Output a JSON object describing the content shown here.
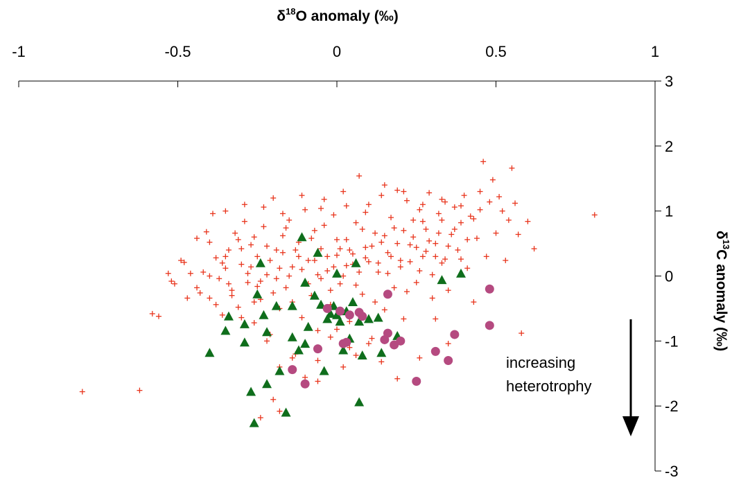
{
  "chart_data": {
    "type": "scatter",
    "title": "",
    "xlabel": {
      "pre": "δ",
      "sup": "18",
      "post": "O anomaly (‰)"
    },
    "ylabel": {
      "pre": "δ",
      "sup": "13",
      "post": "C anomaly (‰)"
    },
    "xlim": [
      -1,
      1
    ],
    "ylim": [
      -3,
      3
    ],
    "x_ticks": [
      "-1",
      "-0.5",
      "0",
      "0.5",
      "1"
    ],
    "y_ticks": [
      "3",
      "2",
      "1",
      "0",
      "-1",
      "-2",
      "-3"
    ],
    "x_axis_position": "top",
    "y_axis_position": "right",
    "grid": false,
    "legend": "none",
    "annotation": {
      "lines": [
        "increasing",
        "heterotrophy"
      ],
      "arrow": "down"
    },
    "series": [
      {
        "marker": "plus",
        "color": "#e8341c",
        "points": [
          [
            -0.8,
            -1.78
          ],
          [
            -0.62,
            -1.76
          ],
          [
            -0.58,
            -0.58
          ],
          [
            -0.56,
            -0.62
          ],
          [
            -0.52,
            -0.08
          ],
          [
            -0.51,
            -0.12
          ],
          [
            -0.49,
            0.24
          ],
          [
            -0.48,
            0.21
          ],
          [
            -0.46,
            0.04
          ],
          [
            -0.44,
            -0.18
          ],
          [
            -0.43,
            -0.26
          ],
          [
            -0.42,
            0.06
          ],
          [
            -0.41,
            0.68
          ],
          [
            -0.4,
            0.52
          ],
          [
            -0.4,
            -0.34
          ],
          [
            -0.38,
            0.28
          ],
          [
            -0.37,
            -0.04
          ],
          [
            -0.36,
            -0.6
          ],
          [
            -0.35,
            0.12
          ],
          [
            -0.34,
            0.4
          ],
          [
            -0.33,
            -0.22
          ],
          [
            -0.32,
            0.66
          ],
          [
            -0.31,
            -0.48
          ],
          [
            -0.3,
            0.18
          ],
          [
            -0.29,
            0.84
          ],
          [
            -0.28,
            -0.1
          ],
          [
            -0.27,
            0.48
          ],
          [
            -0.26,
            -0.72
          ],
          [
            -0.25,
            0.3
          ],
          [
            -0.24,
            -0.36
          ],
          [
            -0.23,
            0.76
          ],
          [
            -0.22,
            0.02
          ],
          [
            -0.21,
            -0.9
          ],
          [
            -0.2,
            1.2
          ],
          [
            -0.19,
            0.4
          ],
          [
            -0.18,
            -0.5
          ],
          [
            -0.17,
            0.62
          ],
          [
            -0.16,
            -0.18
          ],
          [
            -0.15,
            0.86
          ],
          [
            -0.14,
            0.14
          ],
          [
            -0.13,
            -1.2
          ],
          [
            -0.12,
            0.52
          ],
          [
            -0.11,
            -0.64
          ],
          [
            -0.1,
            1.02
          ],
          [
            -0.09,
            0.24
          ],
          [
            -0.08,
            -0.3
          ],
          [
            -0.07,
            0.7
          ],
          [
            -0.06,
            -0.84
          ],
          [
            -0.05,
            0.42
          ],
          [
            -0.04,
            1.18
          ],
          [
            -0.03,
            0.08
          ],
          [
            -0.02,
            -0.44
          ],
          [
            -0.01,
            0.94
          ],
          [
            0.0,
            0.32
          ],
          [
            0.01,
            -0.12
          ],
          [
            0.02,
            1.3
          ],
          [
            0.03,
            0.56
          ],
          [
            0.04,
            -0.7
          ],
          [
            0.05,
            0.18
          ],
          [
            0.06,
            0.82
          ],
          [
            0.07,
            1.54
          ],
          [
            0.08,
            -0.28
          ],
          [
            0.09,
            0.44
          ],
          [
            0.1,
            1.1
          ],
          [
            0.11,
            -0.96
          ],
          [
            0.12,
            0.66
          ],
          [
            0.13,
            0.06
          ],
          [
            0.14,
            1.24
          ],
          [
            0.15,
            -0.52
          ],
          [
            0.16,
            0.36
          ],
          [
            0.17,
            0.9
          ],
          [
            0.18,
            -0.18
          ],
          [
            0.19,
            1.32
          ],
          [
            0.2,
            0.14
          ],
          [
            0.21,
            -0.66
          ],
          [
            0.22,
            1.16
          ],
          [
            0.23,
            0.48
          ],
          [
            0.24,
            0.86
          ],
          [
            0.25,
            -0.1
          ],
          [
            0.26,
            1.02
          ],
          [
            0.27,
            0.3
          ],
          [
            0.28,
            0.72
          ],
          [
            0.29,
            1.28
          ],
          [
            0.3,
            -0.34
          ],
          [
            0.31,
            0.5
          ],
          [
            0.32,
            0.96
          ],
          [
            0.33,
            0.2
          ],
          [
            0.34,
            1.14
          ],
          [
            0.35,
            -0.22
          ],
          [
            0.36,
            0.64
          ],
          [
            0.37,
            1.06
          ],
          [
            0.38,
            0.4
          ],
          [
            0.39,
            0.82
          ],
          [
            0.4,
            1.24
          ],
          [
            0.41,
            0.12
          ],
          [
            0.42,
            0.92
          ],
          [
            0.43,
            -0.4
          ],
          [
            0.44,
            0.58
          ],
          [
            0.45,
            1.02
          ],
          [
            0.46,
            1.76
          ],
          [
            0.47,
            0.3
          ],
          [
            0.48,
            1.14
          ],
          [
            0.49,
            1.48
          ],
          [
            0.5,
            0.66
          ],
          [
            0.52,
            1.0
          ],
          [
            0.53,
            0.24
          ],
          [
            0.55,
            1.66
          ],
          [
            0.56,
            1.12
          ],
          [
            0.57,
            0.64
          ],
          [
            0.58,
            -0.88
          ],
          [
            0.6,
            0.84
          ],
          [
            0.62,
            0.42
          ],
          [
            0.81,
            0.94
          ],
          [
            -0.36,
            0.2
          ],
          [
            -0.34,
            -0.12
          ],
          [
            -0.31,
            0.56
          ],
          [
            -0.28,
            0.04
          ],
          [
            -0.26,
            0.6
          ],
          [
            -0.24,
            -0.08
          ],
          [
            -0.22,
            0.46
          ],
          [
            -0.2,
            -0.26
          ],
          [
            -0.18,
            0.12
          ],
          [
            -0.16,
            0.74
          ],
          [
            -0.14,
            -0.4
          ],
          [
            -0.12,
            0.3
          ],
          [
            -0.1,
            -0.12
          ],
          [
            -0.08,
            0.58
          ],
          [
            -0.06,
            0.02
          ],
          [
            -0.04,
            0.78
          ],
          [
            -0.02,
            -0.22
          ],
          [
            0.0,
            0.56
          ],
          [
            0.02,
            0.0
          ],
          [
            0.04,
            0.4
          ],
          [
            0.06,
            -0.14
          ],
          [
            0.08,
            0.72
          ],
          [
            0.1,
            0.22
          ],
          [
            0.12,
            -0.4
          ],
          [
            0.14,
            0.52
          ],
          [
            0.16,
            0.04
          ],
          [
            0.18,
            0.74
          ],
          [
            0.2,
            0.24
          ],
          [
            0.22,
            -0.24
          ],
          [
            0.24,
            0.6
          ],
          [
            0.26,
            0.08
          ],
          [
            0.28,
            0.38
          ],
          [
            0.3,
            0.02
          ],
          [
            0.32,
            0.66
          ],
          [
            0.34,
            0.26
          ],
          [
            -0.3,
            -0.64
          ],
          [
            -0.26,
            -0.4
          ],
          [
            -0.22,
            -1.0
          ],
          [
            -0.18,
            -1.4
          ],
          [
            -0.14,
            -1.26
          ],
          [
            -0.1,
            -1.56
          ],
          [
            -0.06,
            -1.3
          ],
          [
            -0.02,
            -0.94
          ],
          [
            0.02,
            -1.4
          ],
          [
            0.06,
            -1.22
          ],
          [
            0.1,
            -1.04
          ],
          [
            0.14,
            -1.32
          ],
          [
            -0.2,
            -1.9
          ],
          [
            -0.18,
            -2.08
          ],
          [
            -0.24,
            -2.18
          ],
          [
            0.19,
            -1.58
          ],
          [
            0.26,
            -1.26
          ],
          [
            0.31,
            -0.66
          ],
          [
            0.35,
            -1.04
          ],
          [
            -0.06,
            -1.62
          ],
          [
            0.0,
            -0.82
          ],
          [
            0.04,
            -1.1
          ],
          [
            -0.4,
            0.0
          ],
          [
            -0.38,
            -0.44
          ],
          [
            -0.35,
            0.3
          ],
          [
            -0.33,
            -0.3
          ],
          [
            -0.3,
            0.42
          ],
          [
            -0.27,
            0.14
          ],
          [
            -0.25,
            -0.16
          ],
          [
            -0.21,
            0.24
          ],
          [
            -0.19,
            -0.04
          ],
          [
            -0.17,
            0.36
          ],
          [
            -0.15,
            0.0
          ],
          [
            -0.13,
            0.4
          ],
          [
            -0.11,
            0.1
          ],
          [
            -0.09,
            -0.12
          ],
          [
            -0.07,
            0.24
          ],
          [
            -0.05,
            -0.04
          ],
          [
            -0.03,
            0.3
          ],
          [
            -0.01,
            0.14
          ],
          [
            0.01,
            0.42
          ],
          [
            0.03,
            0.16
          ],
          [
            0.05,
            0.34
          ],
          [
            0.07,
            0.06
          ],
          [
            0.09,
            0.28
          ],
          [
            0.11,
            0.46
          ],
          [
            0.13,
            0.2
          ],
          [
            0.15,
            0.62
          ],
          [
            0.17,
            0.3
          ],
          [
            0.19,
            0.5
          ],
          [
            0.21,
            0.7
          ],
          [
            0.23,
            0.22
          ],
          [
            0.25,
            0.44
          ],
          [
            0.27,
            0.84
          ],
          [
            0.29,
            0.54
          ],
          [
            0.31,
            0.3
          ],
          [
            0.33,
            0.86
          ],
          [
            0.35,
            0.46
          ],
          [
            0.37,
            0.72
          ],
          [
            0.39,
            0.26
          ],
          [
            0.41,
            0.56
          ],
          [
            0.43,
            0.88
          ],
          [
            -0.44,
            0.58
          ],
          [
            -0.47,
            -0.34
          ],
          [
            -0.53,
            0.04
          ],
          [
            -0.39,
            0.96
          ],
          [
            -0.35,
            1.0
          ],
          [
            -0.29,
            1.1
          ],
          [
            -0.23,
            1.06
          ],
          [
            -0.17,
            0.96
          ],
          [
            -0.11,
            1.24
          ],
          [
            -0.05,
            1.04
          ],
          [
            0.03,
            1.08
          ],
          [
            0.09,
            0.98
          ],
          [
            0.15,
            1.4
          ],
          [
            0.21,
            1.3
          ],
          [
            0.27,
            1.1
          ],
          [
            0.33,
            1.18
          ],
          [
            0.39,
            1.08
          ],
          [
            0.45,
            1.3
          ],
          [
            0.51,
            1.22
          ],
          [
            0.54,
            0.86
          ]
        ]
      },
      {
        "marker": "triangle",
        "color": "#0f6e1c",
        "points": [
          [
            -0.4,
            -1.18
          ],
          [
            -0.35,
            -0.84
          ],
          [
            -0.34,
            -0.62
          ],
          [
            -0.29,
            -0.74
          ],
          [
            -0.29,
            -1.02
          ],
          [
            -0.27,
            -1.78
          ],
          [
            -0.26,
            -2.26
          ],
          [
            -0.25,
            -0.28
          ],
          [
            -0.24,
            0.2
          ],
          [
            -0.23,
            -0.6
          ],
          [
            -0.22,
            -0.86
          ],
          [
            -0.22,
            -1.66
          ],
          [
            -0.19,
            -0.46
          ],
          [
            -0.18,
            -1.46
          ],
          [
            -0.16,
            -2.1
          ],
          [
            -0.14,
            -0.46
          ],
          [
            -0.14,
            -0.94
          ],
          [
            -0.12,
            -1.14
          ],
          [
            -0.11,
            0.6
          ],
          [
            -0.1,
            -0.1
          ],
          [
            -0.1,
            -1.04
          ],
          [
            -0.09,
            -0.78
          ],
          [
            -0.07,
            -0.3
          ],
          [
            -0.06,
            0.36
          ],
          [
            -0.05,
            -0.44
          ],
          [
            -0.04,
            -1.46
          ],
          [
            -0.03,
            -0.66
          ],
          [
            -0.01,
            -0.46
          ],
          [
            0.0,
            -0.6
          ],
          [
            0.0,
            0.04
          ],
          [
            0.01,
            -0.7
          ],
          [
            0.02,
            -1.14
          ],
          [
            0.03,
            -0.54
          ],
          [
            0.04,
            -0.96
          ],
          [
            0.05,
            -0.4
          ],
          [
            0.06,
            0.2
          ],
          [
            0.07,
            -0.7
          ],
          [
            0.07,
            -1.94
          ],
          [
            0.08,
            -1.22
          ],
          [
            0.1,
            -0.66
          ],
          [
            0.13,
            -0.64
          ],
          [
            0.14,
            -1.18
          ],
          [
            0.19,
            -0.92
          ],
          [
            0.33,
            -0.06
          ],
          [
            0.39,
            0.04
          ],
          [
            -0.02,
            -0.58
          ]
        ]
      },
      {
        "marker": "circle",
        "color": "#b54a80",
        "points": [
          [
            -0.14,
            -1.44
          ],
          [
            -0.1,
            -1.66
          ],
          [
            -0.06,
            -1.12
          ],
          [
            -0.03,
            -0.5
          ],
          [
            0.01,
            -0.54
          ],
          [
            0.02,
            -1.04
          ],
          [
            0.03,
            -1.02
          ],
          [
            0.04,
            -0.6
          ],
          [
            0.07,
            -0.56
          ],
          [
            0.08,
            -0.62
          ],
          [
            0.15,
            -0.98
          ],
          [
            0.16,
            -0.28
          ],
          [
            0.16,
            -0.88
          ],
          [
            0.18,
            -1.06
          ],
          [
            0.2,
            -1.0
          ],
          [
            0.25,
            -1.62
          ],
          [
            0.31,
            -1.16
          ],
          [
            0.35,
            -1.3
          ],
          [
            0.37,
            -0.9
          ],
          [
            0.48,
            -0.2
          ],
          [
            0.48,
            -0.76
          ]
        ]
      }
    ]
  }
}
